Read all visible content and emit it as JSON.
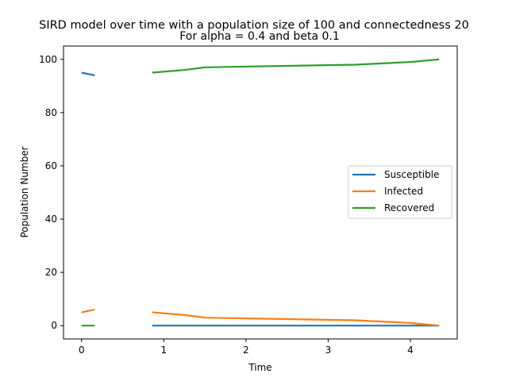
{
  "chart_data": {
    "type": "line",
    "title": "SIRD model over time with a population size of 100 and connectedness 20",
    "subtitle": "For alpha = 0.4 and beta 0.1",
    "xlabel": "Time",
    "ylabel": "Population Number",
    "xlim": [
      -0.22,
      4.57
    ],
    "ylim": [
      -5,
      105
    ],
    "xticks": [
      0,
      1,
      2,
      3,
      4
    ],
    "yticks": [
      0,
      20,
      40,
      60,
      80,
      100
    ],
    "grid": false,
    "legend_position": "center-right",
    "series": [
      {
        "name": "Susceptible",
        "color": "#1f77b4",
        "segments": [
          {
            "x": [
              0,
              0.16
            ],
            "y": [
              95,
              94
            ]
          },
          {
            "x": [
              0.86,
              1.25,
              1.5,
              3.33,
              4.0,
              4.35
            ],
            "y": [
              0,
              0,
              0,
              0,
              0,
              0
            ]
          }
        ]
      },
      {
        "name": "Infected",
        "color": "#ff7f0e",
        "segments": [
          {
            "x": [
              0,
              0.16
            ],
            "y": [
              5,
              6
            ]
          },
          {
            "x": [
              0.86,
              1.25,
              1.5,
              3.33,
              4.0,
              4.35
            ],
            "y": [
              5,
              4,
              3,
              2,
              1,
              0
            ]
          }
        ]
      },
      {
        "name": "Recovered",
        "color": "#2ca02c",
        "segments": [
          {
            "x": [
              0,
              0.16
            ],
            "y": [
              0,
              0
            ]
          },
          {
            "x": [
              0.86,
              1.25,
              1.5,
              3.33,
              4.0,
              4.35
            ],
            "y": [
              95,
              96,
              97,
              98,
              99,
              100
            ]
          }
        ]
      }
    ]
  }
}
